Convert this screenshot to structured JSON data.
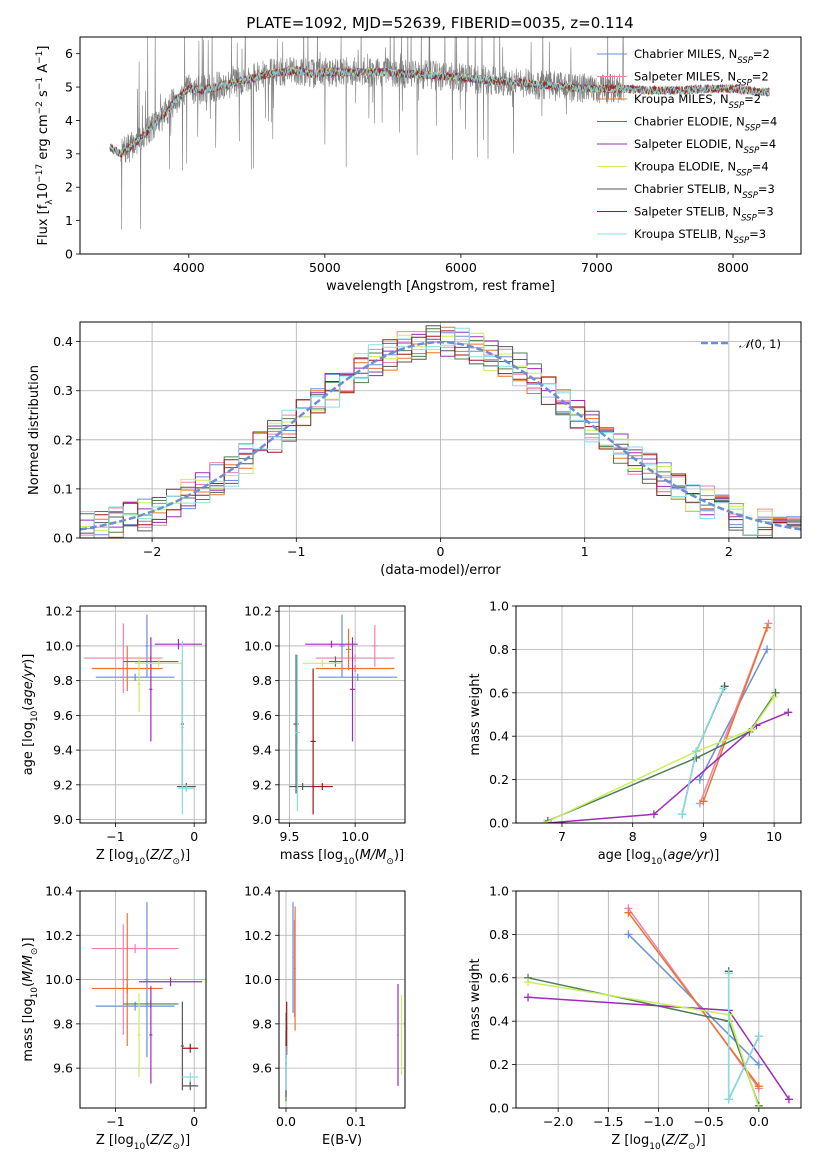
{
  "figure_title": "PLATE=1092, MJD=52639, FIBERID=0035, z=0.114",
  "colors": {
    "Chabrier MILES": "#6a8fd6",
    "Salpeter MILES": "#ee82aa",
    "Kroupa MILES": "#e9742f",
    "Chabrier ELODIE": "#4f7d59",
    "Salpeter ELODIE": "#9a2fb3",
    "Kroupa ELODIE": "#c9ee5e",
    "Chabrier STELIB": "#575757",
    "Salpeter STELIB": "#a11818",
    "Kroupa STELIB": "#86dfe6",
    "data": "#808080"
  },
  "chart_data": [
    {
      "id": "spectrum",
      "type": "line",
      "title": "PLATE=1092, MJD=52639, FIBERID=0035, z=0.114",
      "xlabel": "wavelength [Angstrom, rest frame]",
      "ylabel": "Flux [f_λ 10^-17 erg cm^-2 s^-1 A^-1]",
      "xlim": [
        3200,
        8500
      ],
      "ylim": [
        0,
        6.5
      ],
      "xticks": [
        4000,
        5000,
        6000,
        7000,
        8000
      ],
      "yticks": [
        0,
        1,
        2,
        3,
        4,
        5,
        6
      ],
      "grid": false,
      "legend_position": "top-right",
      "legend": [
        "Chabrier MILES, N_SSP=2",
        "Salpeter MILES, N_SSP=2",
        "Kroupa MILES, N_SSP=2",
        "Chabrier ELODIE, N_SSP=4",
        "Salpeter ELODIE, N_SSP=4",
        "Kroupa ELODIE, N_SSP=4",
        "Chabrier STELIB, N_SSP=3",
        "Salpeter STELIB, N_SSP=3",
        "Kroupa STELIB, N_SSP=3"
      ],
      "legend_labels": [
        {
          "main": "Chabrier MILES, N",
          "sub": "SSP",
          "tail": "=2"
        },
        {
          "main": "Salpeter MILES, N",
          "sub": "SSP",
          "tail": "=2"
        },
        {
          "main": "Kroupa MILES, N",
          "sub": "SSP",
          "tail": "=2"
        },
        {
          "main": "Chabrier ELODIE, N",
          "sub": "SSP",
          "tail": "=4"
        },
        {
          "main": "Salpeter ELODIE, N",
          "sub": "SSP",
          "tail": "=4"
        },
        {
          "main": "Kroupa ELODIE, N",
          "sub": "SSP",
          "tail": "=4"
        },
        {
          "main": "Chabrier STELIB, N",
          "sub": "SSP",
          "tail": "=3"
        },
        {
          "main": "Salpeter STELIB, N",
          "sub": "SSP",
          "tail": "=3"
        },
        {
          "main": "Kroupa STELIB, N",
          "sub": "SSP",
          "tail": "=3"
        }
      ],
      "continuum": {
        "x": [
          3420,
          3500,
          3600,
          3700,
          3800,
          3900,
          4000,
          4100,
          4200,
          4300,
          4400,
          4500,
          4600,
          4700,
          4800,
          4900,
          5000,
          5200,
          5400,
          5600,
          5800,
          6000,
          6200,
          6400,
          6600,
          6800,
          7000,
          7200,
          7400,
          7600,
          7800,
          8000,
          8200,
          8270
        ],
        "y": [
          3.2,
          3.0,
          3.3,
          3.7,
          4.1,
          4.6,
          4.95,
          4.9,
          5.0,
          5.1,
          5.2,
          5.3,
          5.4,
          5.45,
          5.5,
          5.4,
          5.45,
          5.45,
          5.45,
          5.4,
          5.35,
          5.3,
          5.2,
          5.15,
          5.05,
          5.0,
          4.95,
          4.95,
          4.9,
          4.9,
          4.95,
          4.95,
          4.85,
          4.85
        ]
      },
      "model_x_range": [
        3420,
        8270
      ],
      "data_x_range": [
        3500,
        7200
      ]
    },
    {
      "id": "residuals",
      "type": "line",
      "xlabel": "(data-model)/error",
      "ylabel": "Normed distribution",
      "xlim": [
        -2.5,
        2.5
      ],
      "ylim": [
        0,
        0.44
      ],
      "xticks": [
        -2,
        -1,
        0,
        1,
        2
      ],
      "yticks": [
        0.0,
        0.1,
        0.2,
        0.3,
        0.4
      ],
      "grid": true,
      "legend_position": "top-right",
      "legend": [
        "N(0,1)"
      ],
      "gaussian": {
        "mean": 0,
        "sigma": 1,
        "color": "#6a8fd6",
        "style": "dashed"
      },
      "histogram_bin_width": 0.1,
      "histogram_noise_amplitude": 0.07
    },
    {
      "id": "age-vs-Z",
      "type": "scatter",
      "xlabel": "Z [log10(Z/Z_sun)]",
      "ylabel": "age [log10(age/yr)]",
      "xlim": [
        -1.45,
        0.15
      ],
      "ylim": [
        8.98,
        10.23
      ],
      "xticks": [
        -1,
        0
      ],
      "yticks": [
        9.0,
        9.2,
        9.4,
        9.6,
        9.8,
        10.0,
        10.2
      ],
      "grid": true,
      "points": [
        {
          "model": "Chabrier MILES",
          "x": -0.75,
          "y": 9.82,
          "xerr": 0.5,
          "yerr": 0.02
        },
        {
          "model": "Chabrier MILES",
          "x": -0.6,
          "y": 10.0,
          "xerr": 0.02,
          "yerr": 0.18
        },
        {
          "model": "Salpeter MILES",
          "x": -0.9,
          "y": 9.93,
          "xerr": 0.5,
          "yerr": 0.2
        },
        {
          "model": "Kroupa MILES",
          "x": -0.85,
          "y": 9.87,
          "xerr": 0.45,
          "yerr": 0.13
        },
        {
          "model": "Chabrier ELODIE",
          "x": -0.55,
          "y": 9.91,
          "xerr": 0.35,
          "yerr": 0.03
        },
        {
          "model": "Salpeter ELODIE",
          "x": -0.2,
          "y": 10.01,
          "xerr": 0.3,
          "yerr": 0.03
        },
        {
          "model": "Salpeter ELODIE",
          "x": -0.55,
          "y": 9.75,
          "xerr": 0.02,
          "yerr": 0.3
        },
        {
          "model": "Kroupa ELODIE",
          "x": -0.45,
          "y": 9.9,
          "xerr": 0.3,
          "yerr": 0.02
        },
        {
          "model": "Kroupa ELODIE",
          "x": -0.7,
          "y": 9.78,
          "xerr": 0.02,
          "yerr": 0.16
        },
        {
          "model": "Chabrier STELIB",
          "x": -0.15,
          "y": 9.55,
          "xerr": 0.02,
          "yerr": 0.37
        },
        {
          "model": "Chabrier STELIB",
          "x": -0.1,
          "y": 9.19,
          "xerr": 0.12,
          "yerr": 0.02
        },
        {
          "model": "Kroupa STELIB",
          "x": -0.15,
          "y": 9.53,
          "xerr": 0.02,
          "yerr": 0.5
        },
        {
          "model": "Kroupa STELIB",
          "x": -0.1,
          "y": 9.18,
          "xerr": 0.1,
          "yerr": 0.02
        }
      ]
    },
    {
      "id": "age-vs-mass",
      "type": "scatter",
      "xlabel": "mass [log10(M/M_sun)]",
      "ylabel": "",
      "xlim": [
        9.42,
        10.38
      ],
      "ylim": [
        8.98,
        10.23
      ],
      "xticks": [
        9.5,
        10.0
      ],
      "yticks": [
        9.0,
        9.2,
        9.4,
        9.6,
        9.8,
        10.0,
        10.2
      ],
      "grid": true,
      "points": [
        {
          "model": "Chabrier MILES",
          "x": 10.02,
          "y": 9.82,
          "xerr": 0.3,
          "yerr": 0.02
        },
        {
          "model": "Chabrier MILES",
          "x": 9.9,
          "y": 10.0,
          "xerr": 0.02,
          "yerr": 0.18
        },
        {
          "model": "Salpeter MILES",
          "x": 10.0,
          "y": 9.93,
          "xerr": 0.3,
          "yerr": 0.02
        },
        {
          "model": "Salpeter MILES",
          "x": 10.15,
          "y": 10.0,
          "xerr": 0.02,
          "yerr": 0.12
        },
        {
          "model": "Kroupa MILES",
          "x": 10.0,
          "y": 9.87,
          "xerr": 0.3,
          "yerr": 0.02
        },
        {
          "model": "Kroupa MILES",
          "x": 9.95,
          "y": 9.98,
          "xerr": 0.02,
          "yerr": 0.12
        },
        {
          "model": "Chabrier ELODIE",
          "x": 9.85,
          "y": 9.91,
          "xerr": 0.05,
          "yerr": 0.03
        },
        {
          "model": "Salpeter ELODIE",
          "x": 9.82,
          "y": 10.01,
          "xerr": 0.2,
          "yerr": 0.02
        },
        {
          "model": "Salpeter ELODIE",
          "x": 9.98,
          "y": 9.75,
          "xerr": 0.02,
          "yerr": 0.3
        },
        {
          "model": "Kroupa ELODIE",
          "x": 9.75,
          "y": 9.9,
          "xerr": 0.15,
          "yerr": 0.02
        },
        {
          "model": "Chabrier STELIB",
          "x": 9.55,
          "y": 9.55,
          "xerr": 0.02,
          "yerr": 0.4
        },
        {
          "model": "Chabrier STELIB",
          "x": 9.6,
          "y": 9.19,
          "xerr": 0.1,
          "yerr": 0.02
        },
        {
          "model": "Salpeter STELIB",
          "x": 9.68,
          "y": 9.45,
          "xerr": 0.02,
          "yerr": 0.42
        },
        {
          "model": "Salpeter STELIB",
          "x": 9.75,
          "y": 9.19,
          "xerr": 0.08,
          "yerr": 0.02
        },
        {
          "model": "Kroupa STELIB",
          "x": 9.56,
          "y": 9.5,
          "xerr": 0.02,
          "yerr": 0.45
        }
      ]
    },
    {
      "id": "weight-vs-age",
      "type": "line",
      "xlabel": "age [log10(age/yr)]",
      "ylabel": "mass weight",
      "xlim": [
        6.35,
        10.38
      ],
      "ylim": [
        0,
        1.0
      ],
      "xticks": [
        7,
        8,
        9,
        10
      ],
      "yticks": [
        0.0,
        0.2,
        0.4,
        0.6,
        0.8,
        1.0
      ],
      "grid": true,
      "series": [
        {
          "model": "Chabrier MILES",
          "x": [
            8.95,
            9.9
          ],
          "y": [
            0.2,
            0.8
          ]
        },
        {
          "model": "Salpeter MILES",
          "x": [
            8.95,
            9.92
          ],
          "y": [
            0.09,
            0.92
          ]
        },
        {
          "model": "Kroupa MILES",
          "x": [
            9.0,
            9.9
          ],
          "y": [
            0.1,
            0.9
          ]
        },
        {
          "model": "Chabrier ELODIE",
          "x": [
            6.8,
            8.9,
            9.65,
            10.02
          ],
          "y": [
            0.01,
            0.3,
            0.42,
            0.6
          ]
        },
        {
          "model": "Salpeter ELODIE",
          "x": [
            6.8,
            8.3,
            9.75,
            10.2
          ],
          "y": [
            0.0,
            0.04,
            0.45,
            0.51
          ]
        },
        {
          "model": "Kroupa ELODIE",
          "x": [
            6.75,
            8.9,
            9.68,
            10.0
          ],
          "y": [
            0.0,
            0.33,
            0.43,
            0.58
          ]
        },
        {
          "model": "Chabrier STELIB",
          "x": [
            8.7,
            8.9,
            9.3
          ],
          "y": [
            0.04,
            0.33,
            0.63
          ]
        },
        {
          "model": "Kroupa STELIB",
          "x": [
            8.7,
            8.9,
            9.28
          ],
          "y": [
            0.04,
            0.33,
            0.62
          ]
        }
      ]
    },
    {
      "id": "mass-vs-Z",
      "type": "scatter",
      "xlabel": "Z [log10(Z/Z_sun)]",
      "ylabel": "mass [log10(M/M_sun)]",
      "xlim": [
        -1.45,
        0.15
      ],
      "ylim": [
        9.42,
        10.4
      ],
      "xticks": [
        -1,
        0
      ],
      "yticks": [
        9.6,
        9.8,
        10.0,
        10.2,
        10.4
      ],
      "grid": true,
      "points": [
        {
          "model": "Chabrier MILES",
          "x": -0.75,
          "y": 9.88,
          "xerr": 0.5,
          "yerr": 0.02
        },
        {
          "model": "Chabrier MILES",
          "x": -0.6,
          "y": 10.0,
          "xerr": 0.02,
          "yerr": 0.35
        },
        {
          "model": "Salpeter MILES",
          "x": -0.75,
          "y": 10.14,
          "xerr": 0.55,
          "yerr": 0.02
        },
        {
          "model": "Salpeter MILES",
          "x": -0.9,
          "y": 10.0,
          "xerr": 0.02,
          "yerr": 0.25
        },
        {
          "model": "Kroupa MILES",
          "x": -0.85,
          "y": 9.96,
          "xerr": 0.45,
          "yerr": 0.02
        },
        {
          "model": "Kroupa MILES",
          "x": -0.85,
          "y": 10.0,
          "xerr": 0.02,
          "yerr": 0.3
        },
        {
          "model": "Chabrier ELODIE",
          "x": -0.55,
          "y": 9.89,
          "xerr": 0.35,
          "yerr": 0.02
        },
        {
          "model": "Salpeter ELODIE",
          "x": -0.3,
          "y": 9.99,
          "xerr": 0.4,
          "yerr": 0.02
        },
        {
          "model": "Salpeter ELODIE",
          "x": -0.55,
          "y": 9.75,
          "xerr": 0.02,
          "yerr": 0.22
        },
        {
          "model": "Kroupa ELODIE",
          "x": -0.7,
          "y": 9.75,
          "xerr": 0.02,
          "yerr": 0.19
        },
        {
          "model": "Chabrier STELIB",
          "x": -0.15,
          "y": 9.7,
          "xerr": 0.02,
          "yerr": 0.2
        },
        {
          "model": "Chabrier STELIB",
          "x": -0.05,
          "y": 9.52,
          "xerr": 0.1,
          "yerr": 0.02
        },
        {
          "model": "Salpeter STELIB",
          "x": -0.05,
          "y": 9.69,
          "xerr": 0.1,
          "yerr": 0.02
        },
        {
          "model": "Kroupa STELIB",
          "x": -0.05,
          "y": 9.56,
          "xerr": 0.1,
          "yerr": 0.02
        }
      ]
    },
    {
      "id": "mass-vs-EBV",
      "type": "scatter",
      "xlabel": "E(B-V)",
      "ylabel": "",
      "xlim": [
        -0.01,
        0.17
      ],
      "ylim": [
        9.42,
        10.4
      ],
      "xticks": [
        0.0,
        0.1
      ],
      "yticks": [
        9.6,
        9.8,
        10.0,
        10.2,
        10.4
      ],
      "grid": true,
      "points": [
        {
          "model": "Chabrier MILES",
          "x": 0.01,
          "y": 10.1,
          "xerr": 0.001,
          "yerr": 0.25
        },
        {
          "model": "Salpeter MILES",
          "x": 0.012,
          "y": 10.05,
          "xerr": 0.001,
          "yerr": 0.22
        },
        {
          "model": "Kroupa MILES",
          "x": 0.013,
          "y": 10.05,
          "xerr": 0.001,
          "yerr": 0.28
        },
        {
          "model": "Chabrier ELODIE",
          "x": 0.0,
          "y": 9.65,
          "xerr": 0.001,
          "yerr": 0.2
        },
        {
          "model": "Salpeter ELODIE",
          "x": 0.16,
          "y": 9.75,
          "xerr": 0.001,
          "yerr": 0.23
        },
        {
          "model": "Kroupa ELODIE",
          "x": 0.165,
          "y": 9.75,
          "xerr": 0.001,
          "yerr": 0.18
        },
        {
          "model": "Chabrier STELIB",
          "x": 0.0,
          "y": 9.62,
          "xerr": 0.001,
          "yerr": 0.15
        },
        {
          "model": "Salpeter STELIB",
          "x": 0.001,
          "y": 9.78,
          "xerr": 0.001,
          "yerr": 0.12
        },
        {
          "model": "Kroupa STELIB",
          "x": 0.0,
          "y": 9.6,
          "xerr": 0.001,
          "yerr": 0.1
        }
      ]
    },
    {
      "id": "weight-vs-Z",
      "type": "line",
      "xlabel": "Z [log10(Z/Z_sun)]",
      "ylabel": "mass weight",
      "xlim": [
        -2.42,
        0.42
      ],
      "ylim": [
        0,
        1.0
      ],
      "xticks": [
        -2.0,
        -1.5,
        -1.0,
        -0.5,
        0.0
      ],
      "yticks": [
        0.0,
        0.2,
        0.4,
        0.6,
        0.8,
        1.0
      ],
      "grid": true,
      "series": [
        {
          "model": "Chabrier MILES",
          "x": [
            -1.3,
            0.0
          ],
          "y": [
            0.8,
            0.2
          ]
        },
        {
          "model": "Salpeter MILES",
          "x": [
            -1.3,
            0.0
          ],
          "y": [
            0.92,
            0.09
          ]
        },
        {
          "model": "Kroupa MILES",
          "x": [
            -1.3,
            0.0
          ],
          "y": [
            0.9,
            0.1
          ]
        },
        {
          "model": "Chabrier ELODIE",
          "x": [
            -2.3,
            -0.3,
            0.0
          ],
          "y": [
            0.6,
            0.4,
            0.01
          ]
        },
        {
          "model": "Salpeter ELODIE",
          "x": [
            -2.3,
            -0.3,
            0.3
          ],
          "y": [
            0.51,
            0.45,
            0.04
          ]
        },
        {
          "model": "Kroupa ELODIE",
          "x": [
            -2.3,
            -0.3,
            0.0
          ],
          "y": [
            0.58,
            0.43,
            0.0
          ]
        },
        {
          "model": "Chabrier STELIB",
          "x": [
            -0.3,
            -0.3,
            0.0,
            -0.3
          ],
          "y": [
            0.63,
            0.04,
            0.33,
            0.04
          ]
        },
        {
          "model": "Kroupa STELIB",
          "x": [
            -0.3,
            -0.3,
            0.0,
            -0.3
          ],
          "y": [
            0.62,
            0.04,
            0.33,
            0.04
          ]
        }
      ]
    }
  ]
}
